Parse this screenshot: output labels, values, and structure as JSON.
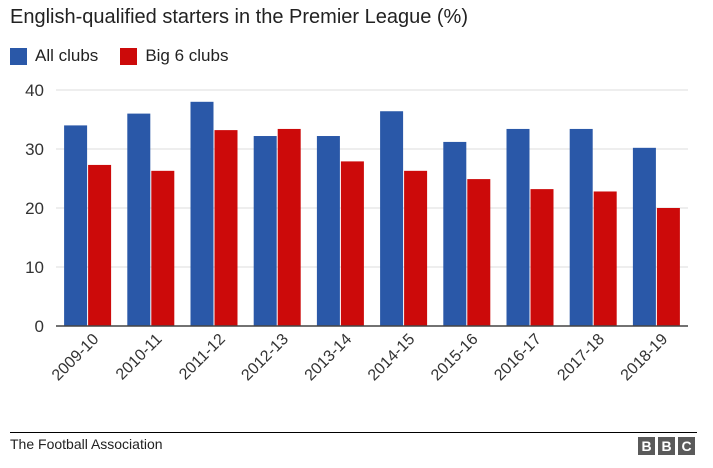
{
  "title": "English-qualified starters in the Premier League (%)",
  "source": "The Football Association",
  "logo": [
    "B",
    "B",
    "C"
  ],
  "colors": {
    "all": "#2a58a8",
    "big6": "#cc0a0a",
    "grid": "#dcdcdc",
    "axis": "#444444"
  },
  "legend": [
    {
      "label": "All clubs",
      "color": "#2a58a8"
    },
    {
      "label": "Big 6 clubs",
      "color": "#cc0a0a"
    }
  ],
  "chart_data": {
    "type": "bar",
    "title": "English-qualified starters in the Premier League (%)",
    "categories": [
      "2009-10",
      "2010-11",
      "2011-12",
      "2012-13",
      "2013-14",
      "2014-15",
      "2015-16",
      "2016-17",
      "2017-18",
      "2018-19"
    ],
    "series": [
      {
        "name": "All clubs",
        "values": [
          34,
          36,
          38,
          32.2,
          32.2,
          36.4,
          31.2,
          33.4,
          33.4,
          30.2
        ]
      },
      {
        "name": "Big 6 clubs",
        "values": [
          27.3,
          26.3,
          33.2,
          33.4,
          27.9,
          26.3,
          24.9,
          23.2,
          22.8,
          20
        ]
      }
    ],
    "yticks": [
      0,
      10,
      20,
      30,
      40
    ],
    "ylim": [
      0,
      40
    ],
    "grid": true,
    "legend_position": "top-left"
  }
}
